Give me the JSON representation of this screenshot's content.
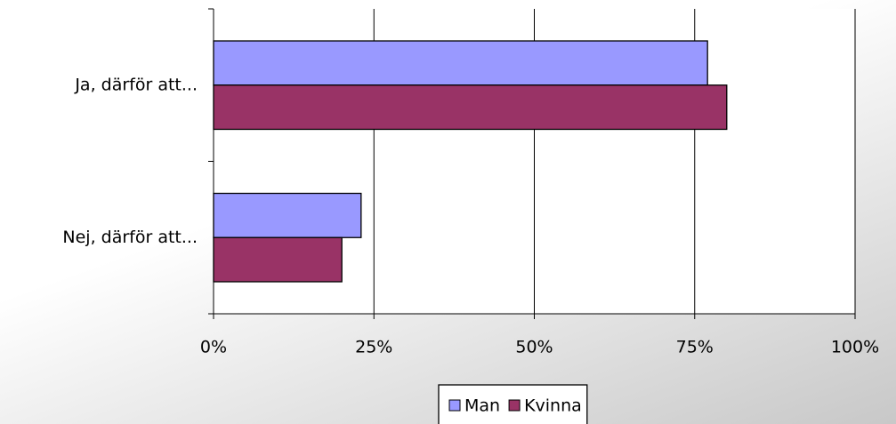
{
  "chart_data": {
    "type": "bar",
    "orientation": "horizontal",
    "categories": [
      "Ja, därför att...",
      "Nej, därför att..."
    ],
    "series": [
      {
        "name": "Man",
        "color": "#9999ff",
        "values": [
          77,
          23
        ]
      },
      {
        "name": "Kvinna",
        "color": "#993366",
        "values": [
          80,
          20
        ]
      }
    ],
    "xlim": [
      0,
      100
    ],
    "xticks": [
      {
        "value": 0,
        "label": "0%"
      },
      {
        "value": 25,
        "label": "25%"
      },
      {
        "value": 50,
        "label": "50%"
      },
      {
        "value": 75,
        "label": "75%"
      },
      {
        "value": 100,
        "label": "100%"
      }
    ],
    "grid": true,
    "legend": "bottom"
  }
}
